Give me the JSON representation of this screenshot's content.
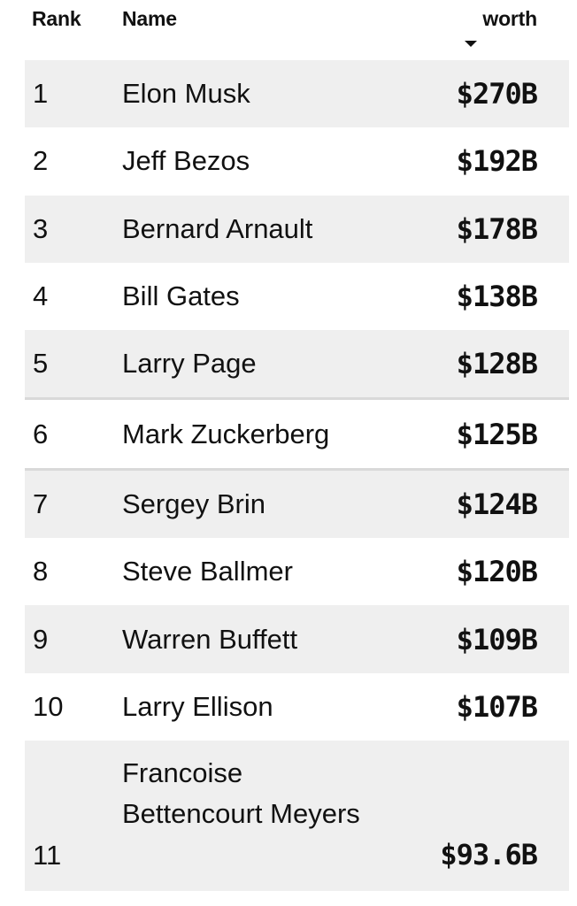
{
  "header": {
    "rank_label": "Rank",
    "name_label": "Name",
    "worth_label": "worth",
    "sort_icon": "caret-down-icon"
  },
  "colors": {
    "row_shade": "#efefef",
    "text": "#111111",
    "separator": "#d9d9d9"
  },
  "rows": [
    {
      "rank": "1",
      "name": "Elon Musk",
      "worth": "$270B"
    },
    {
      "rank": "2",
      "name": "Jeff Bezos",
      "worth": "$192B"
    },
    {
      "rank": "3",
      "name": "Bernard Arnault",
      "worth": "$178B"
    },
    {
      "rank": "4",
      "name": "Bill Gates",
      "worth": "$138B"
    },
    {
      "rank": "5",
      "name": "Larry Page",
      "worth": "$128B"
    },
    {
      "rank": "6",
      "name": "Mark Zuckerberg",
      "worth": "$125B"
    },
    {
      "rank": "7",
      "name": "Sergey Brin",
      "worth": "$124B"
    },
    {
      "rank": "8",
      "name": "Steve Ballmer",
      "worth": "$120B"
    },
    {
      "rank": "9",
      "name": "Warren Buffett",
      "worth": "$109B"
    },
    {
      "rank": "10",
      "name": "Larry Ellison",
      "worth": "$107B"
    },
    {
      "rank": "11",
      "name": "Francoise Bettencourt Meyers",
      "worth": "$93.6B"
    }
  ]
}
